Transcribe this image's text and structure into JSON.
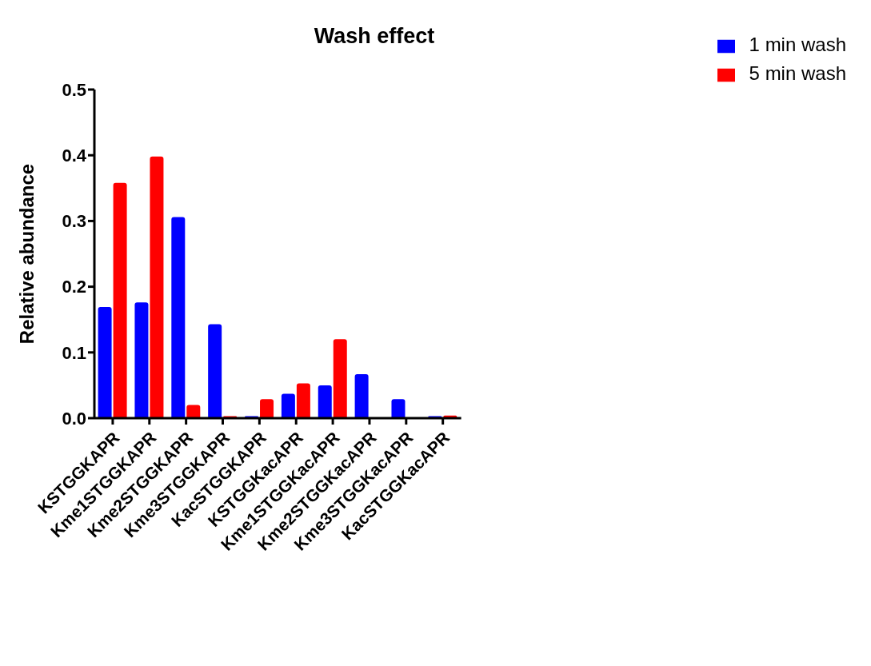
{
  "chart_data": {
    "type": "bar",
    "title": "Wash effect",
    "ylabel": "Relative abundance",
    "categories": [
      "KSTGGKAPR",
      "Kme1STGGKAPR",
      "Kme2STGGKAPR",
      "Kme3STGGKAPR",
      "KacSTGGKAPR",
      "KSTGGKacAPR",
      "Kme1STGGKacAPR",
      "Kme2STGGKacAPR",
      "Kme3STGGKacAPR",
      "KacSTGGKacAPR"
    ],
    "series": [
      {
        "name": "1 min wash",
        "color": "#0000ff",
        "values": [
          0.169,
          0.176,
          0.306,
          0.143,
          0.003,
          0.037,
          0.05,
          0.067,
          0.029,
          0.003
        ]
      },
      {
        "name": "5 min wash",
        "color": "#ff0000",
        "values": [
          0.358,
          0.398,
          0.02,
          0.003,
          0.029,
          0.053,
          0.12,
          0,
          0,
          0.004
        ]
      }
    ],
    "ylim": [
      0,
      0.5
    ],
    "yticks": [
      {
        "value": 0,
        "label": "0.0"
      },
      0.1,
      0.2,
      0.3,
      0.4,
      0.5
    ],
    "grid": false,
    "legend": "top right"
  }
}
